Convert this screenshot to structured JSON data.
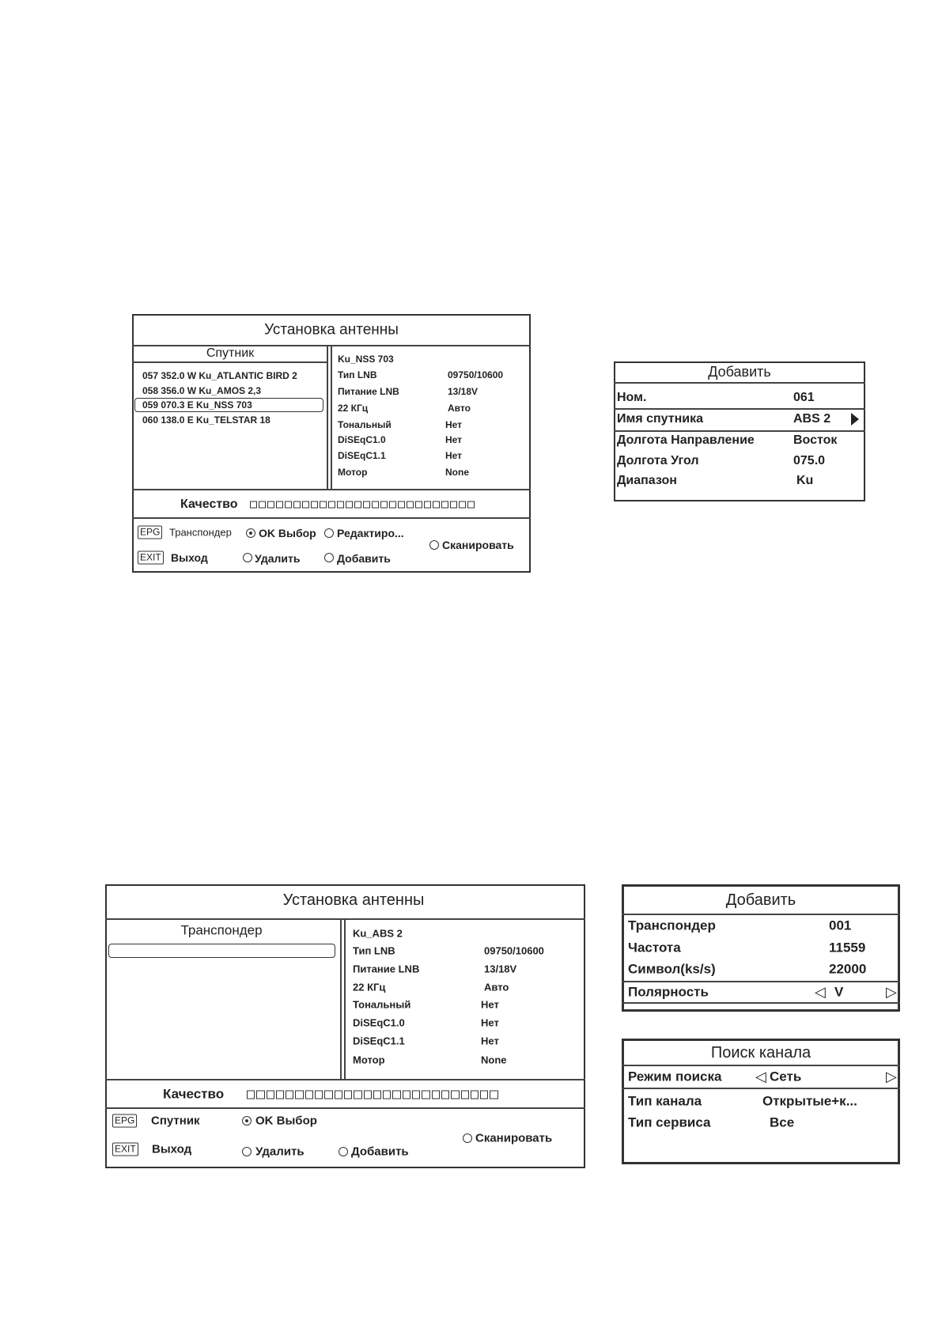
{
  "screen1": {
    "title": "Установка антенны",
    "list_header": "Спутник",
    "satellites": [
      "057 352.0 W Ku_ATLANTIC BIRD 2",
      "058 356.0 W Ku_AMOS 2,3",
      "059 070.3 E Ku_NSS 703",
      "060 138.0 E Ku_TELSTAR 18"
    ],
    "selected_index": 2,
    "info_title": "Ku_NSS 703",
    "info": [
      {
        "label": "Тип LNB",
        "value": "09750/10600"
      },
      {
        "label": "Питание LNB",
        "value": "13/18V"
      },
      {
        "label": "22 КГц",
        "value": "Авто"
      },
      {
        "label": "Тональный",
        "value": "Нет"
      },
      {
        "label": "DiSEqC1.0",
        "value": "Нет"
      },
      {
        "label": "DiSEqC1.1",
        "value": "Нет"
      },
      {
        "label": "Мотор",
        "value": "None"
      }
    ],
    "quality_label": "Качество",
    "quality_level": 0,
    "footer": {
      "epg_key": "EPG",
      "epg_label": "Транспондер",
      "exit_key": "EXIT",
      "exit_label": "Выход",
      "ok": "OK Выбор",
      "edit": "Редактиро...",
      "delete": "Удалить",
      "add": "Добавить",
      "scan": "Сканировать"
    }
  },
  "add_satellite": {
    "title": "Добавить",
    "rows": [
      {
        "label": "Ном.",
        "value": "061"
      },
      {
        "label": "Имя спутника",
        "value": "ABS 2"
      },
      {
        "label": "Долгота Направление",
        "value": "Восток"
      },
      {
        "label": "Долгота Угол",
        "value": "075.0"
      },
      {
        "label": "Диапазон",
        "value": "Ku"
      }
    ]
  },
  "screen2": {
    "title": "Установка антенны",
    "list_header": "Транспондер",
    "info_title": "Ku_ABS 2",
    "info": [
      {
        "label": "Тип LNB",
        "value": "09750/10600"
      },
      {
        "label": "Питание LNB",
        "value": "13/18V"
      },
      {
        "label": "22 КГц",
        "value": "Авто"
      },
      {
        "label": "Тональный",
        "value": "Нет"
      },
      {
        "label": "DiSEqC1.0",
        "value": "Нет"
      },
      {
        "label": "DiSEqC1.1",
        "value": "Нет"
      },
      {
        "label": "Мотор",
        "value": "None"
      }
    ],
    "quality_label": "Качество",
    "quality_level": 0,
    "footer": {
      "epg_key": "EPG",
      "epg_label": "Спутник",
      "exit_key": "EXIT",
      "exit_label": "Выход",
      "ok": "OK Выбор",
      "delete": "Удалить",
      "add": "Добавить",
      "scan": "Сканировать"
    }
  },
  "add_transponder": {
    "title": "Добавить",
    "rows": [
      {
        "label": "Транспондер",
        "value": "001"
      },
      {
        "label": "Частота",
        "value": "11559"
      },
      {
        "label": "Символ(ks/s)",
        "value": "22000"
      },
      {
        "label": "Полярность",
        "value": "V"
      }
    ]
  },
  "channel_search": {
    "title": "Поиск канала",
    "rows": [
      {
        "label": "Режим поиска",
        "value": "Сеть"
      },
      {
        "label": "Тип канала",
        "value": "Открытые+к..."
      },
      {
        "label": "Тип сервиса",
        "value": "Все"
      }
    ]
  }
}
